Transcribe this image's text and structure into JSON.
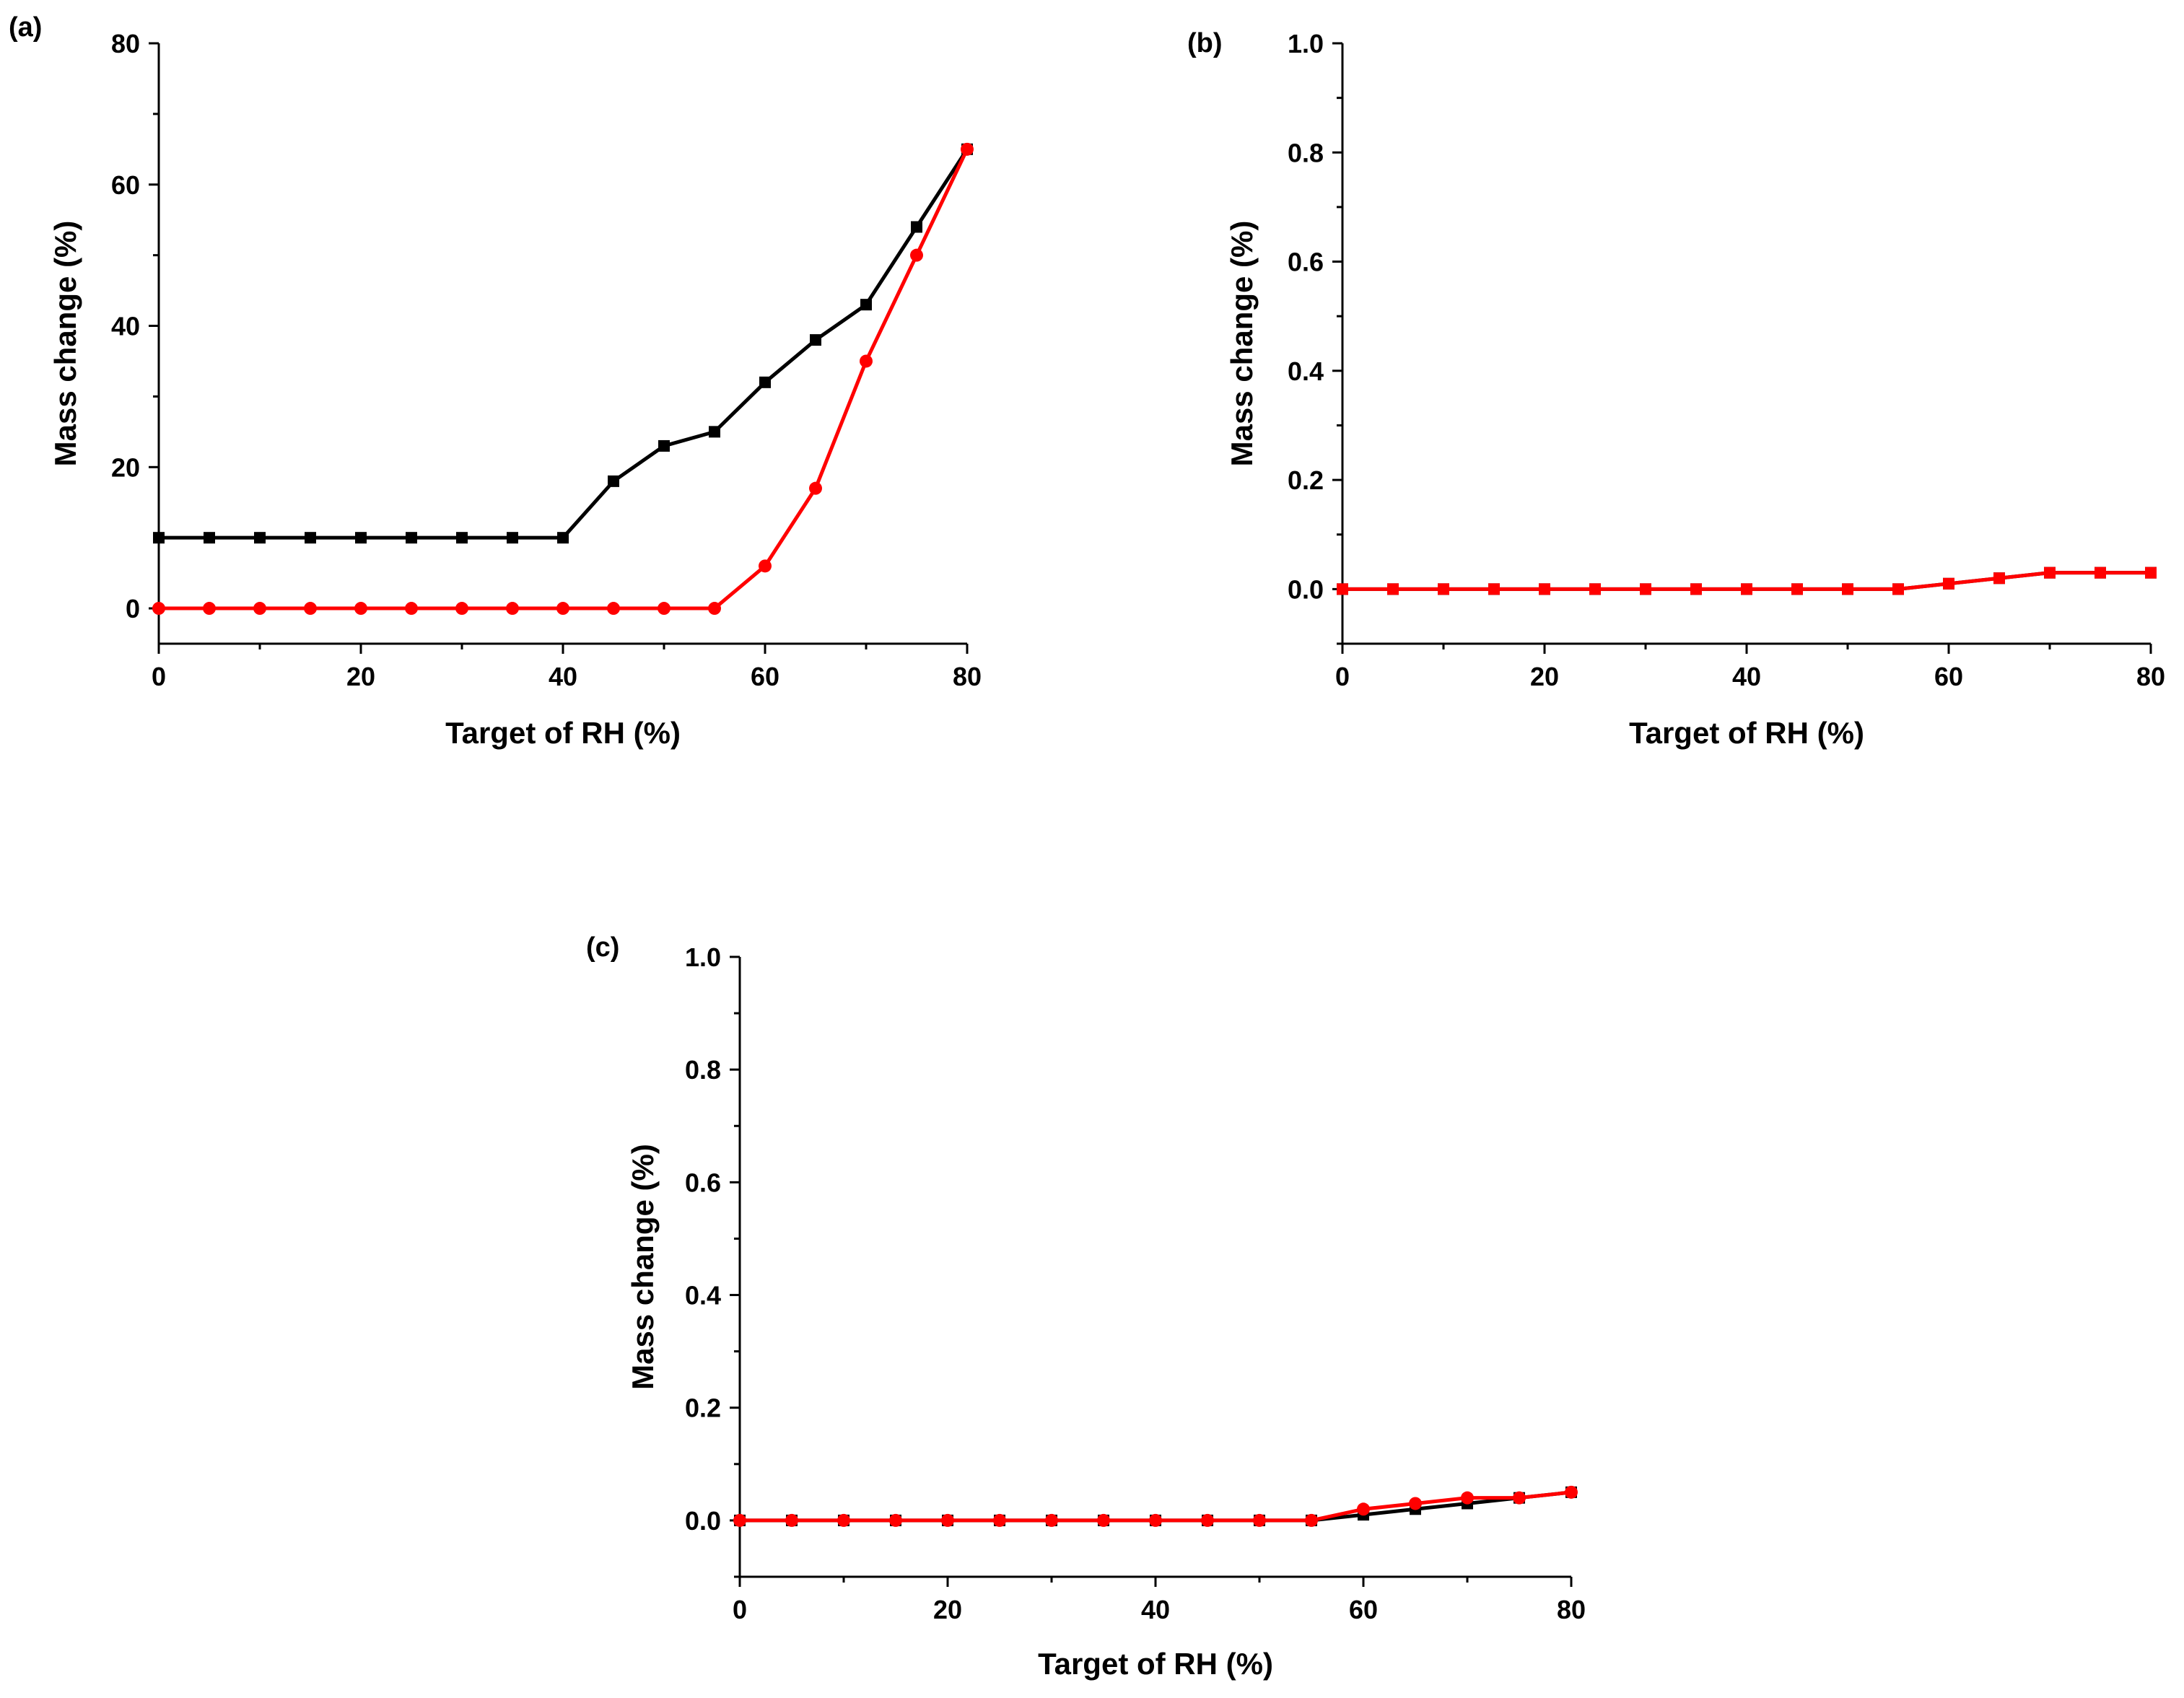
{
  "chart_data": [
    {
      "id": "a",
      "type": "line",
      "panel_label": "(a)",
      "xlabel": "Target of RH (%)",
      "ylabel": "Mass change (%)",
      "xlim": [
        0,
        80
      ],
      "ylim": [
        -5,
        80
      ],
      "xticks": [
        0,
        20,
        40,
        60,
        80
      ],
      "yticks": [
        0,
        20,
        40,
        60,
        80
      ],
      "x": [
        0,
        5,
        10,
        15,
        20,
        25,
        30,
        35,
        40,
        45,
        50,
        55,
        60,
        65,
        70,
        75,
        80
      ],
      "series": [
        {
          "name": "black",
          "color": "#000000",
          "marker": "square",
          "values": [
            10,
            10,
            10,
            10,
            10,
            10,
            10,
            10,
            10,
            18,
            23,
            25,
            32,
            38,
            43,
            54,
            65
          ]
        },
        {
          "name": "red",
          "color": "#ff0000",
          "marker": "circle",
          "values": [
            0,
            0,
            0,
            0,
            0,
            0,
            0,
            0,
            0,
            0,
            0,
            0,
            6,
            17,
            35,
            50,
            65
          ]
        }
      ]
    },
    {
      "id": "b",
      "type": "line",
      "panel_label": "(b)",
      "xlabel": "Target of RH (%)",
      "ylabel": "Mass change (%)",
      "xlim": [
        0,
        80
      ],
      "ylim": [
        -0.1,
        1.0
      ],
      "xticks": [
        0,
        20,
        40,
        60,
        80
      ],
      "yticks": [
        0.0,
        0.2,
        0.4,
        0.6,
        0.8,
        1.0
      ],
      "x": [
        0,
        5,
        10,
        15,
        20,
        25,
        30,
        35,
        40,
        45,
        50,
        55,
        60,
        65,
        70,
        75,
        80
      ],
      "series": [
        {
          "name": "black",
          "color": "#000000",
          "marker": "square",
          "values": [
            0,
            0,
            0,
            0,
            0,
            0,
            0,
            0,
            0,
            0,
            0,
            0,
            0.01,
            0.02,
            0.03,
            0.03,
            0.03
          ]
        },
        {
          "name": "red",
          "color": "#ff0000",
          "marker": "square",
          "values": [
            0,
            0,
            0,
            0,
            0,
            0,
            0,
            0,
            0,
            0,
            0,
            0,
            0.01,
            0.02,
            0.03,
            0.03,
            0.03
          ]
        }
      ]
    },
    {
      "id": "c",
      "type": "line",
      "panel_label": "(c)",
      "xlabel": "Target of RH (%)",
      "ylabel": "Mass change (%)",
      "xlim": [
        0,
        80
      ],
      "ylim": [
        -0.1,
        1.0
      ],
      "xticks": [
        0,
        20,
        40,
        60,
        80
      ],
      "yticks": [
        0.0,
        0.2,
        0.4,
        0.6,
        0.8,
        1.0
      ],
      "x": [
        0,
        5,
        10,
        15,
        20,
        25,
        30,
        35,
        40,
        45,
        50,
        55,
        60,
        65,
        70,
        75,
        80
      ],
      "series": [
        {
          "name": "black",
          "color": "#000000",
          "marker": "square",
          "values": [
            0,
            0,
            0,
            0,
            0,
            0,
            0,
            0,
            0,
            0,
            0,
            0,
            0.01,
            0.02,
            0.03,
            0.04,
            0.05
          ]
        },
        {
          "name": "red",
          "color": "#ff0000",
          "marker": "circle",
          "values": [
            0,
            0,
            0,
            0,
            0,
            0,
            0,
            0,
            0,
            0,
            0,
            0,
            0.02,
            0.03,
            0.04,
            0.04,
            0.05
          ]
        }
      ]
    }
  ]
}
